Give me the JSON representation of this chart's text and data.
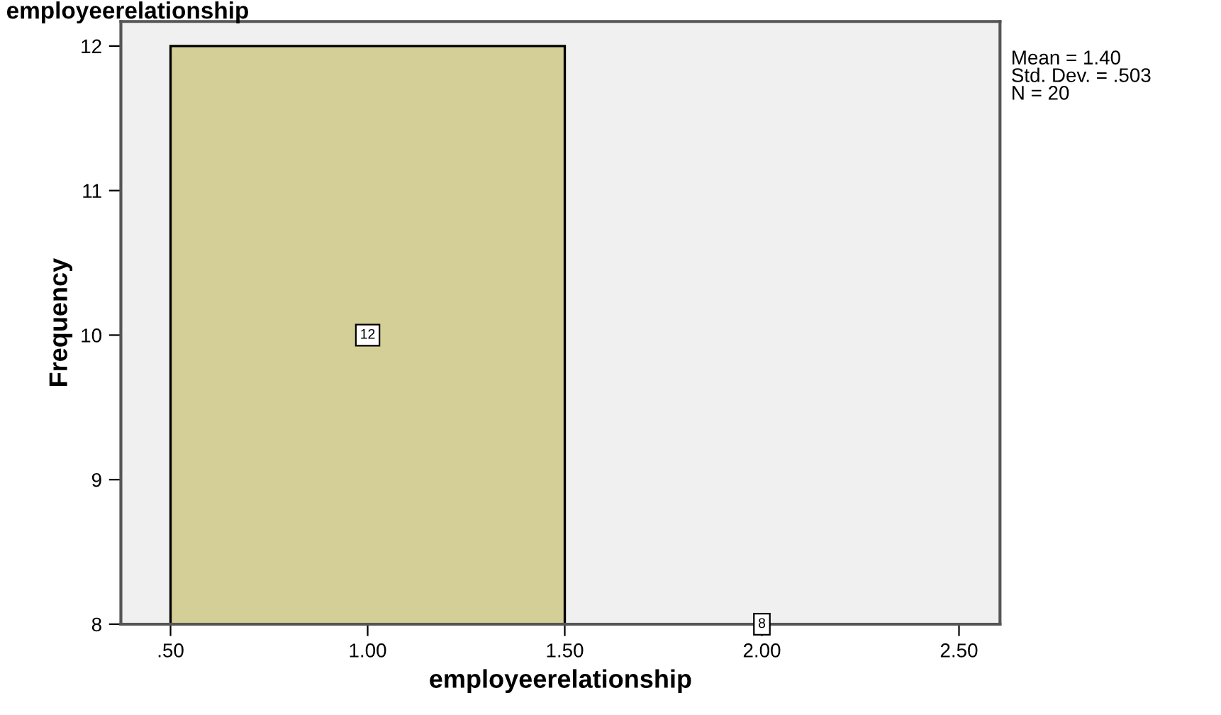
{
  "chart_data": {
    "type": "histogram",
    "title": "employeerelationship",
    "xlabel": "employeerelationship",
    "ylabel": "Frequency",
    "bins": [
      0.5,
      1.5,
      2.5
    ],
    "values": [
      12,
      8
    ],
    "color": "#d3cf96",
    "data_labels": true,
    "xlim": [
      0.374,
      2.604
    ],
    "ylim": [
      8,
      12.17
    ],
    "xticks": [
      {
        "value": 0.5,
        "label": ".50"
      },
      {
        "value": 1.0,
        "label": "1.00"
      },
      {
        "value": 1.5,
        "label": "1.50"
      },
      {
        "value": 2.0,
        "label": "2.00"
      },
      {
        "value": 2.5,
        "label": "2.50"
      }
    ],
    "yticks": [
      8,
      9,
      10,
      11,
      12
    ],
    "grid": false,
    "legend": false,
    "annotations": [
      "Mean = 1.40\nStd. Dev. = .503\nN = 20"
    ]
  }
}
